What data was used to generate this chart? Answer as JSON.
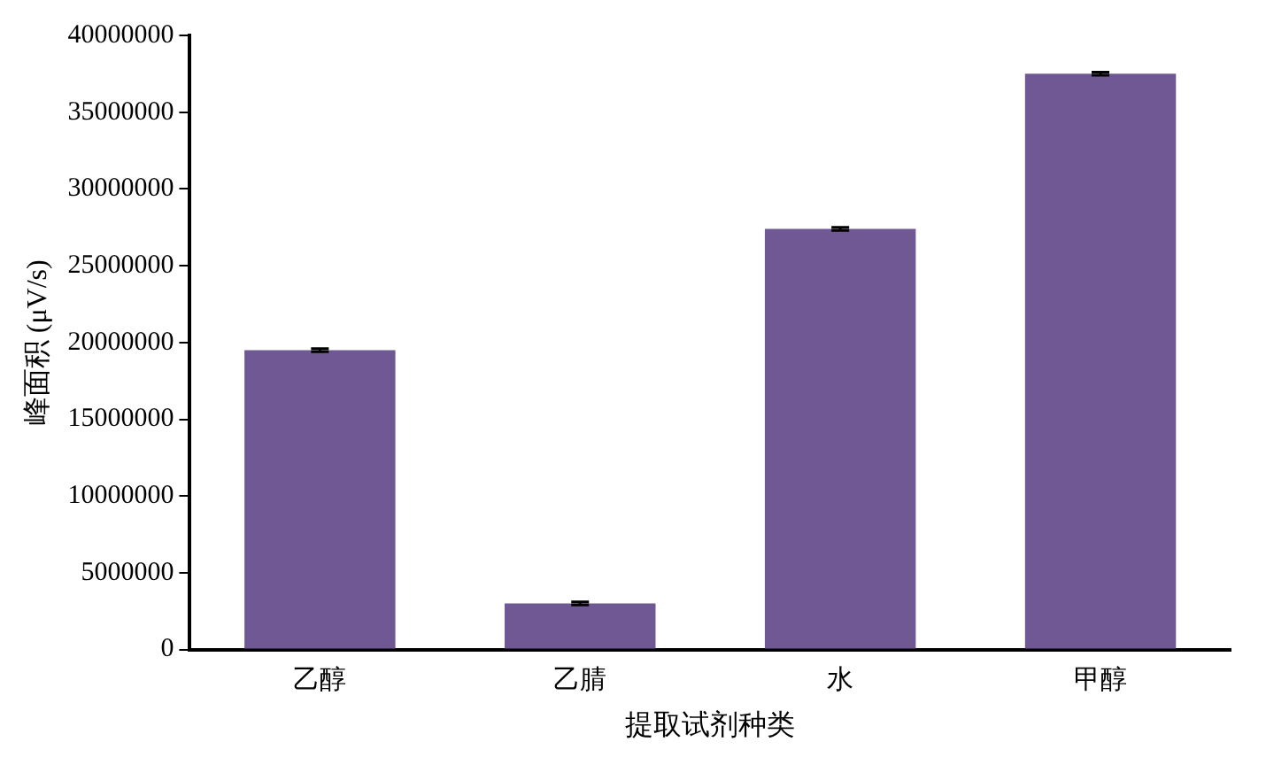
{
  "chart_data": {
    "type": "bar",
    "xlabel": "提取试剂种类",
    "ylabel": "峰面积 (μV/s)",
    "categories": [
      "乙醇",
      "乙腈",
      "水",
      "甲醇"
    ],
    "values": [
      19500000,
      3000000,
      27400000,
      37500000
    ],
    "errors": [
      100000,
      100000,
      100000,
      100000
    ],
    "color": "#6f5893",
    "ylim": [
      0,
      40000000
    ],
    "yticks": [
      0,
      5000000,
      10000000,
      15000000,
      20000000,
      25000000,
      30000000,
      35000000,
      40000000
    ],
    "grid": false,
    "legend": false
  }
}
